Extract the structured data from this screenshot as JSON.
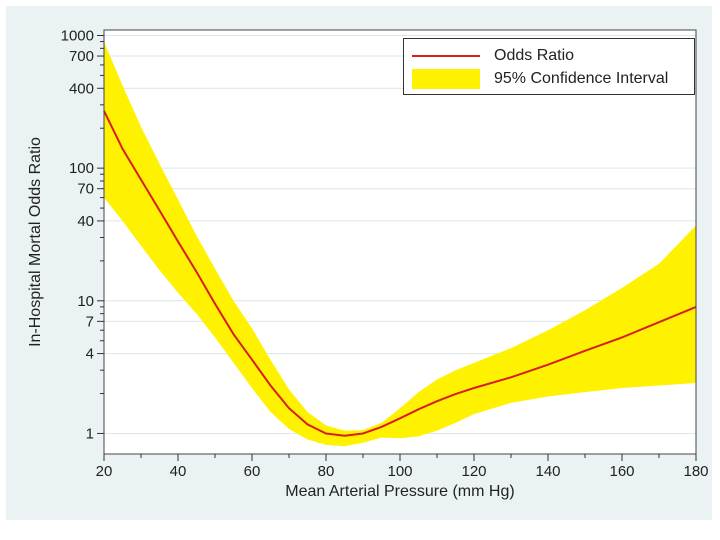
{
  "chart_data": {
    "type": "line",
    "title": "",
    "xlabel": "Mean Arterial Pressure (mm Hg)",
    "ylabel": "In-Hospital Mortal Odds Ratio",
    "xlim": [
      20,
      180
    ],
    "ylim": [
      0.7,
      1100
    ],
    "yscale": "log",
    "grid": true,
    "legend_position": "top-right",
    "xticks": [
      20,
      40,
      60,
      80,
      100,
      120,
      140,
      160,
      180
    ],
    "yticks": [
      1,
      4,
      7,
      10,
      40,
      70,
      100,
      400,
      700,
      1000
    ],
    "yticks_minor": [
      2,
      3,
      5,
      6,
      8,
      9,
      20,
      30,
      50,
      60,
      80,
      90,
      200,
      300,
      500,
      600,
      800,
      900
    ],
    "x": [
      20,
      25,
      30,
      35,
      40,
      45,
      50,
      55,
      60,
      65,
      70,
      75,
      80,
      85,
      90,
      95,
      100,
      105,
      110,
      115,
      120,
      130,
      140,
      150,
      160,
      170,
      180
    ],
    "series": [
      {
        "name": "Odds Ratio",
        "color": "#d81e1e",
        "values": [
          270,
          140,
          82,
          48,
          28,
          16.5,
          9.5,
          5.6,
          3.6,
          2.3,
          1.55,
          1.17,
          1.0,
          0.96,
          1.0,
          1.12,
          1.3,
          1.52,
          1.75,
          1.98,
          2.2,
          2.65,
          3.3,
          4.2,
          5.3,
          6.9,
          9.0
        ]
      },
      {
        "name": "95% Confidence Interval",
        "color": "#fff200",
        "upper": [
          900,
          420,
          205,
          108,
          58,
          31,
          17.5,
          10,
          6.2,
          3.6,
          2.15,
          1.45,
          1.15,
          1.05,
          1.06,
          1.2,
          1.55,
          2.05,
          2.55,
          3.0,
          3.4,
          4.4,
          6.0,
          8.5,
          12.5,
          19,
          37
        ],
        "lower": [
          60,
          40,
          26,
          17,
          11.5,
          8,
          5.3,
          3.4,
          2.2,
          1.45,
          1.08,
          0.9,
          0.82,
          0.8,
          0.85,
          0.93,
          0.92,
          0.95,
          1.05,
          1.2,
          1.4,
          1.7,
          1.9,
          2.05,
          2.2,
          2.3,
          2.4
        ]
      }
    ]
  }
}
